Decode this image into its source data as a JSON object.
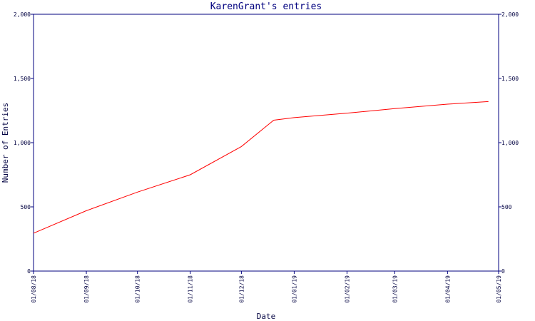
{
  "chart_data": {
    "type": "line",
    "title": "KarenGrant's entries",
    "xlabel": "Date",
    "ylabel": "Number of Entries",
    "x_tick_labels": [
      "01/08/18",
      "01/09/18",
      "01/10/18",
      "01/11/18",
      "01/12/18",
      "01/01/19",
      "01/02/19",
      "01/03/19",
      "01/04/19",
      "01/05/19"
    ],
    "y_tick_labels": [
      "0",
      "500",
      "1,000",
      "1,500",
      "2,000"
    ],
    "y_ticks": [
      0,
      500,
      1000,
      1500,
      2000
    ],
    "ylim": [
      0,
      2000
    ],
    "xlim": [
      "2018-08-01",
      "2019-05-01"
    ],
    "grid": false,
    "colors": {
      "line": "#ff0000",
      "axis": "#00007f",
      "text": "#000040"
    },
    "series": [
      {
        "x": [
          "2018-08-01",
          "2018-09-01",
          "2018-10-01",
          "2018-11-01",
          "2018-12-01",
          "2018-12-20",
          "2019-01-01",
          "2019-02-01",
          "2019-03-01",
          "2019-04-01",
          "2019-04-25"
        ],
        "y": [
          295,
          470,
          615,
          750,
          970,
          1175,
          1195,
          1230,
          1265,
          1300,
          1320
        ]
      }
    ]
  }
}
